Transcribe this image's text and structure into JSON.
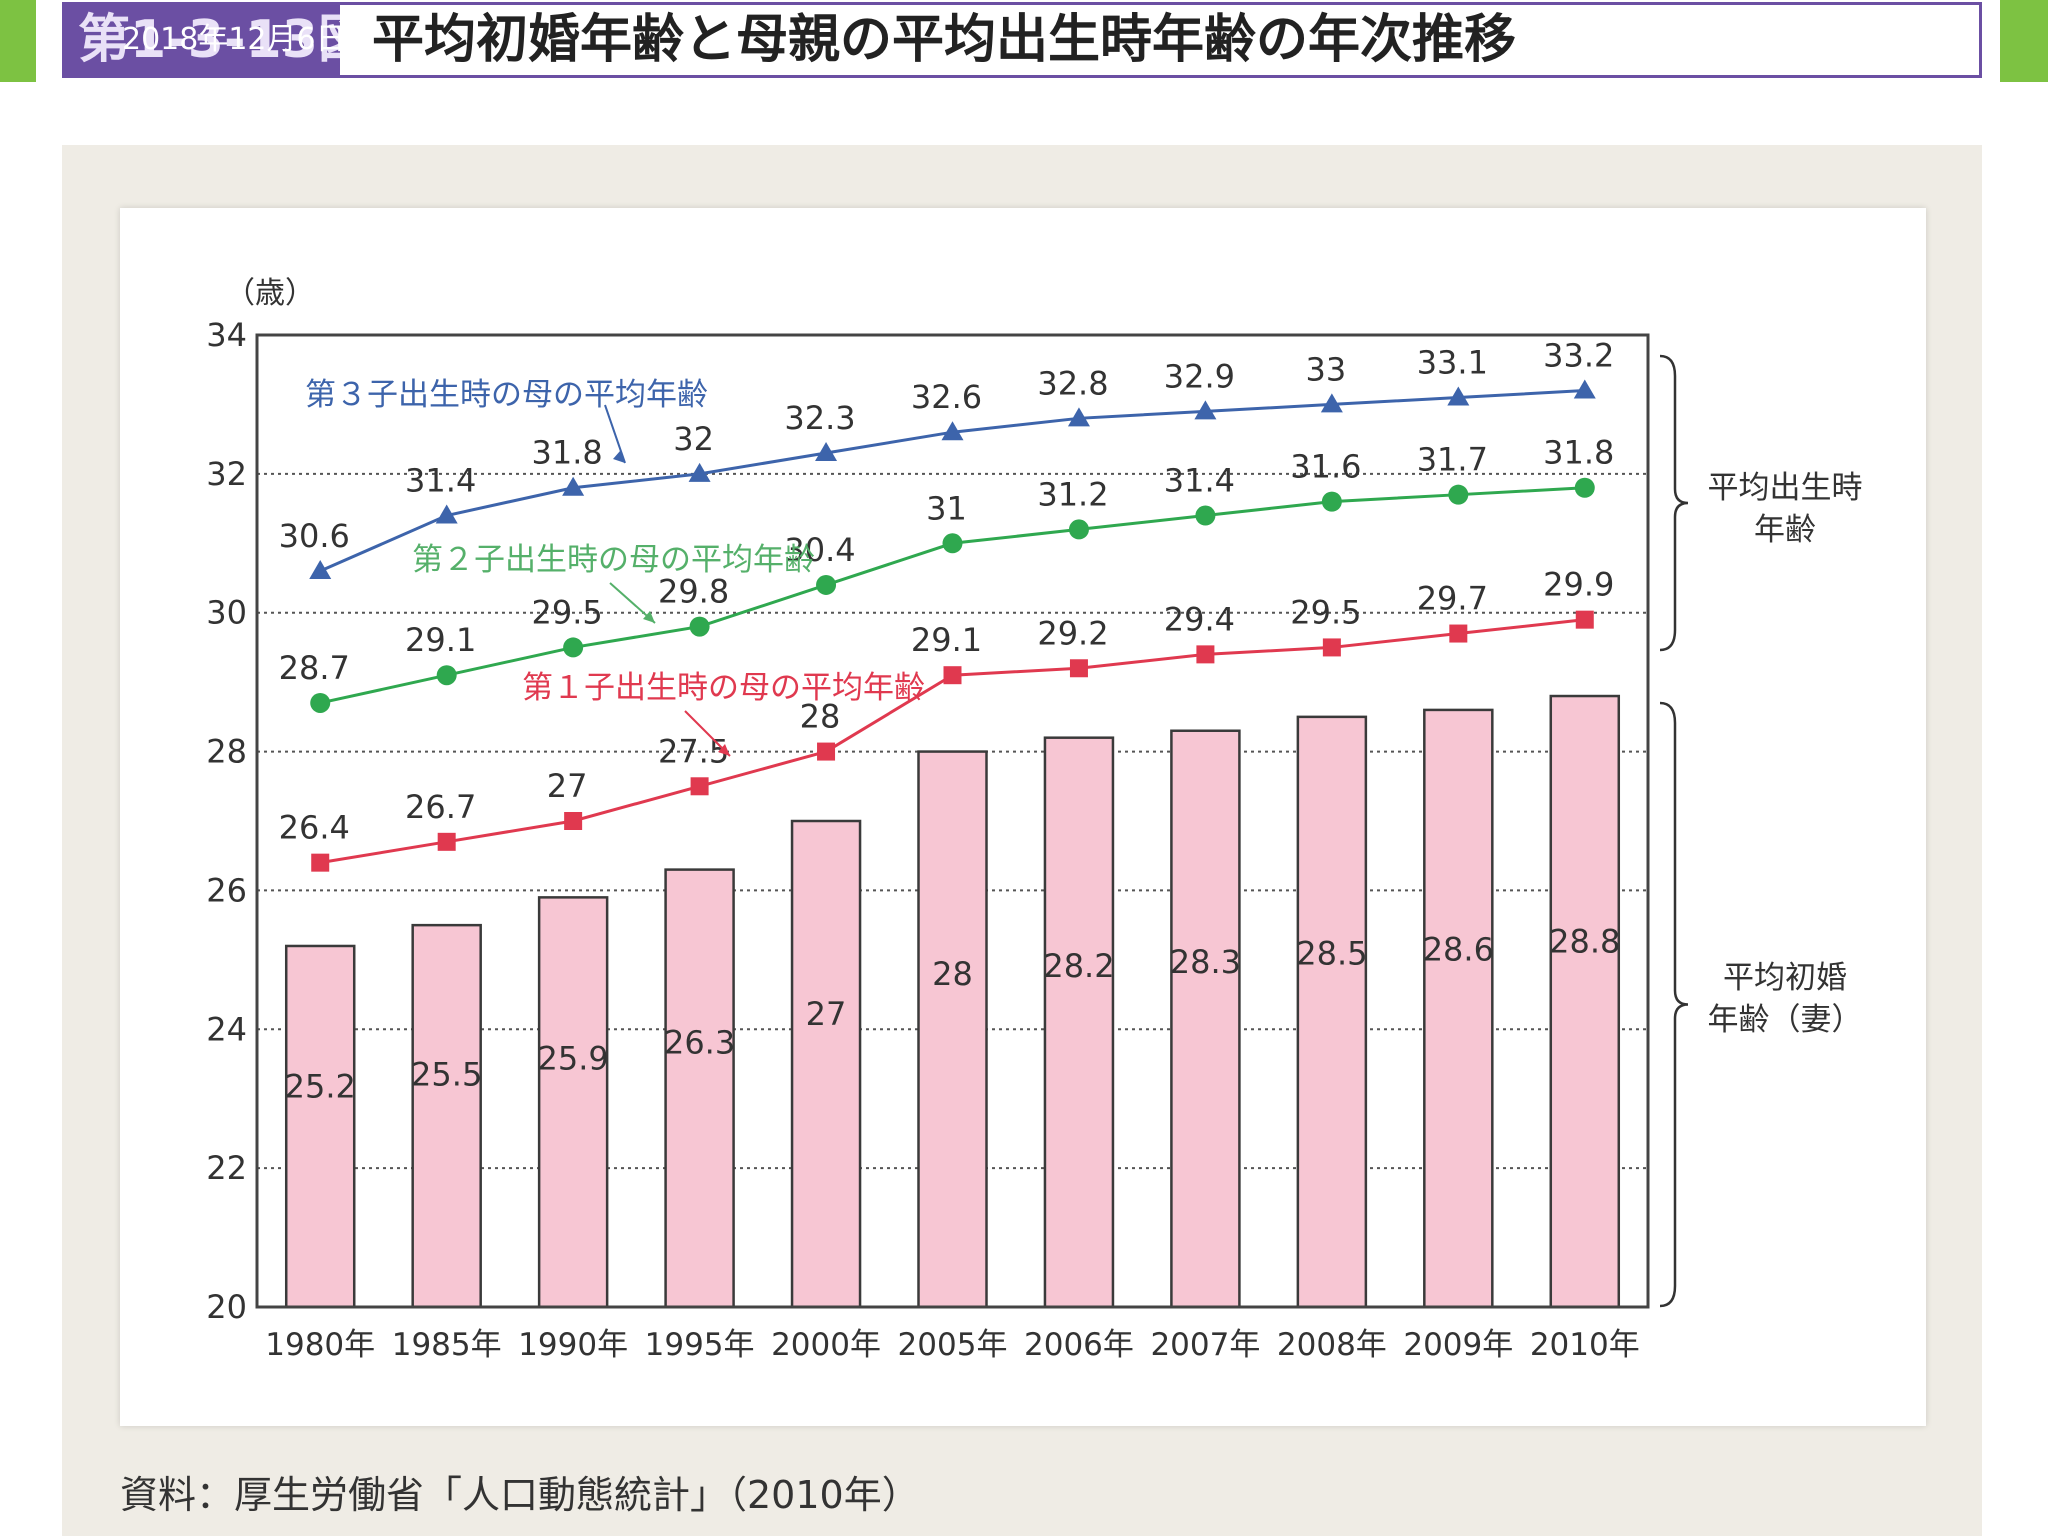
{
  "header": {
    "figure_label": "第1-3-13図",
    "date_stamp": "2018年12月6日",
    "title": "平均初婚年齢と母親の平均出生時年齢の年次推移"
  },
  "colors": {
    "bar_fill": "#f7c6d3",
    "bar_stroke": "#3a3a3a",
    "third_child": "#3d64ab",
    "second_child": "#2fa84f",
    "first_child": "#e0394f",
    "second_label": "#55b06a",
    "header_accent": "#6b4fa3",
    "frame_green": "#7dc242"
  },
  "chart_data": {
    "type": "bar",
    "unit_label": "（歳）",
    "categories": [
      "1980年",
      "1985年",
      "1990年",
      "1995年",
      "2000年",
      "2005年",
      "2006年",
      "2007年",
      "2008年",
      "2009年",
      "2010年"
    ],
    "ylim": [
      20,
      34
    ],
    "yticks": [
      20,
      22,
      24,
      26,
      28,
      30,
      32,
      34
    ],
    "grid": "dotted-horizontal",
    "bars": {
      "name": "平均初婚年齢（妻）",
      "values": [
        25.2,
        25.5,
        25.9,
        26.3,
        27.0,
        28.0,
        28.2,
        28.3,
        28.5,
        28.6,
        28.8
      ]
    },
    "series": [
      {
        "key": "third",
        "name": "第３子出生時の母の平均年齢",
        "marker": "triangle",
        "values": [
          30.6,
          31.4,
          31.8,
          32.0,
          32.3,
          32.6,
          32.8,
          32.9,
          33.0,
          33.1,
          33.2
        ]
      },
      {
        "key": "second",
        "name": "第２子出生時の母の平均年齢",
        "marker": "circle",
        "values": [
          28.7,
          29.1,
          29.5,
          29.8,
          30.4,
          31.0,
          31.2,
          31.4,
          31.6,
          31.7,
          31.8
        ]
      },
      {
        "key": "first",
        "name": "第１子出生時の母の平均年齢",
        "marker": "square",
        "values": [
          26.4,
          26.7,
          27.0,
          27.5,
          28.0,
          29.1,
          29.2,
          29.4,
          29.5,
          29.7,
          29.9
        ]
      }
    ],
    "bracket_labels": {
      "upper": [
        "平均出生時",
        "年齢"
      ],
      "lower": [
        "平均初婚",
        "年齢（妻）"
      ]
    }
  },
  "source": "資料：厚生労働省「人口動態統計」（2010年）"
}
